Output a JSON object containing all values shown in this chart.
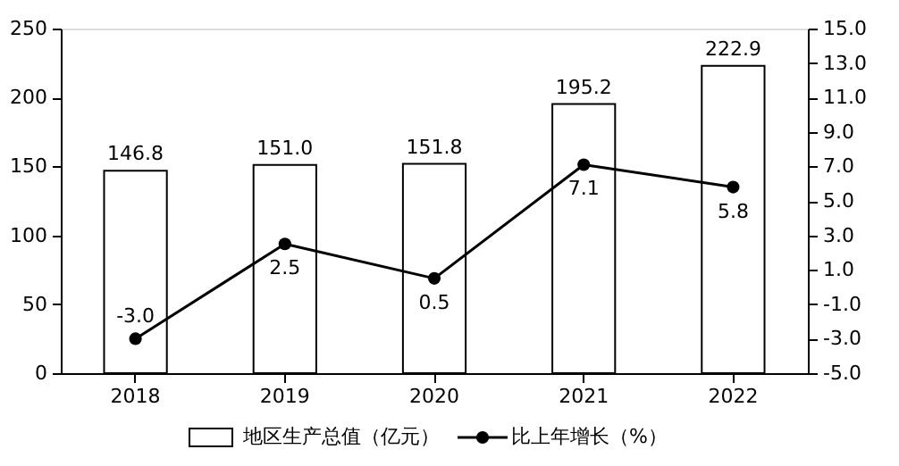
{
  "chart_data": {
    "type": "bar",
    "categories": [
      "2018",
      "2019",
      "2020",
      "2021",
      "2022"
    ],
    "series": [
      {
        "name": "地区生产总值（亿元）",
        "color": "#ffffff",
        "values": [
          146.8,
          151.0,
          151.8,
          195.2,
          222.9
        ],
        "value_labels": [
          "146.8",
          "151.0",
          "151.8",
          "195.2",
          "222.9"
        ]
      },
      {
        "name": "比上年增长（%）",
        "type": "line",
        "axis": "y2",
        "color": "#000000",
        "values": [
          -3.0,
          2.5,
          0.5,
          7.1,
          5.8
        ],
        "value_labels": [
          "-3.0",
          "2.5",
          "0.5",
          "7.1",
          "5.8"
        ]
      }
    ],
    "ylim": [
      0,
      250
    ],
    "yticks": [
      0,
      50,
      100,
      150,
      200,
      250
    ],
    "y2lim": [
      -5,
      15
    ],
    "y2ticks": [
      {
        "value": -5,
        "label": "-5.0"
      },
      {
        "value": -3,
        "label": "-3.0"
      },
      {
        "value": -1,
        "label": "-1.0"
      },
      {
        "value": 1,
        "label": "1.0"
      },
      {
        "value": 3,
        "label": "3.0"
      },
      {
        "value": 5,
        "label": "5.0"
      },
      {
        "value": 7,
        "label": "7.0"
      },
      {
        "value": 9,
        "label": "9.0"
      },
      {
        "value": 11,
        "label": "11.0"
      },
      {
        "value": 13,
        "label": "13.0"
      },
      {
        "value": 15,
        "label": "15.0"
      }
    ],
    "marker": "circle",
    "grid": false,
    "legend": "bottom"
  }
}
